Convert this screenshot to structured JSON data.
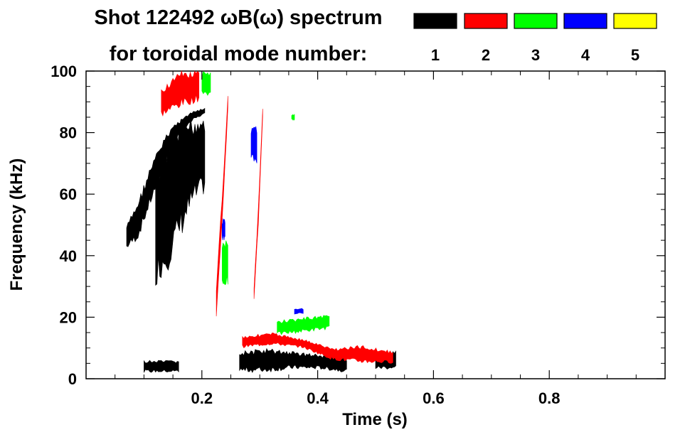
{
  "chart_data": {
    "type": "heatmap",
    "title_line1": "Shot 122492 ωB(ω) spectrum",
    "title_line2": "for toroidal mode number:",
    "xlabel": "Time (s)",
    "ylabel": "Frequency (kHz)",
    "xlim": [
      0.0,
      1.0
    ],
    "ylim": [
      0,
      100
    ],
    "x_ticks": [
      0.2,
      0.4,
      0.6,
      0.8
    ],
    "x_tick_labels": [
      "0.2",
      "0.4",
      "0.6",
      "0.8"
    ],
    "y_ticks": [
      0,
      20,
      40,
      60,
      80,
      100
    ],
    "y_tick_labels": [
      "0",
      "20",
      "40",
      "60",
      "80",
      "100"
    ],
    "legend": [
      {
        "label": "1",
        "color": "#000000"
      },
      {
        "label": "2",
        "color": "#ff0000"
      },
      {
        "label": "3",
        "color": "#00ff00"
      },
      {
        "label": "4",
        "color": "#0000ff"
      },
      {
        "label": "5",
        "color": "#ffff00"
      }
    ],
    "series": [
      {
        "name": "n=1",
        "color": "#000000",
        "regions": [
          {
            "t": [
              0.07,
              0.205
            ],
            "f_low": [
              42,
              45,
              55,
              65,
              75,
              80,
              84,
              86
            ],
            "f_high": [
              50,
              58,
              68,
              76,
              82,
              85,
              87,
              88
            ]
          },
          {
            "t": [
              0.12,
              0.205
            ],
            "f_low": [
              30,
              35,
              45,
              55,
              60
            ],
            "f_high": [
              70,
              80,
              85,
              86,
              87
            ]
          },
          {
            "t": [
              0.265,
              0.45
            ],
            "f_low": [
              2,
              2,
              3,
              3,
              2
            ],
            "f_high": [
              9,
              10,
              9,
              8,
              7
            ]
          },
          {
            "t": [
              0.1,
              0.16
            ],
            "f_low": [
              2,
              2
            ],
            "f_high": [
              6,
              6
            ]
          },
          {
            "t": [
              0.5,
              0.535
            ],
            "f_low": [
              3,
              3
            ],
            "f_high": [
              8,
              9
            ]
          }
        ]
      },
      {
        "name": "n=2",
        "color": "#ff0000",
        "regions": [
          {
            "t": [
              0.13,
              0.195
            ],
            "f_low": [
              85,
              88,
              90
            ],
            "f_high": [
              95,
              100,
              100
            ]
          },
          {
            "t": [
              0.225,
              0.245
            ],
            "f_low": [
              20,
              50,
              88
            ],
            "f_high": [
              30,
              60,
              92
            ]
          },
          {
            "t": [
              0.29,
              0.305
            ],
            "f_low": [
              25,
              50,
              85
            ],
            "f_high": [
              30,
              56,
              88
            ]
          },
          {
            "t": [
              0.27,
              0.53
            ],
            "f_low": [
              10,
              11,
              10,
              6,
              5,
              5
            ],
            "f_high": [
              14,
              15,
              13,
              10,
              11,
              9
            ]
          }
        ]
      },
      {
        "name": "n=3",
        "color": "#00ff00",
        "regions": [
          {
            "t": [
              0.2,
              0.215
            ],
            "f_low": [
              92
            ],
            "f_high": [
              100
            ]
          },
          {
            "t": [
              0.235,
              0.245
            ],
            "f_low": [
              30
            ],
            "f_high": [
              45
            ]
          },
          {
            "t": [
              0.33,
              0.42
            ],
            "f_low": [
              14,
              16
            ],
            "f_high": [
              19,
              21
            ]
          },
          {
            "t": [
              0.355,
              0.36
            ],
            "f_low": [
              84
            ],
            "f_high": [
              86
            ]
          }
        ]
      },
      {
        "name": "n=4",
        "color": "#0000ff",
        "regions": [
          {
            "t": [
              0.285,
              0.295
            ],
            "f_low": [
              70
            ],
            "f_high": [
              82
            ]
          },
          {
            "t": [
              0.36,
              0.375
            ],
            "f_low": [
              21
            ],
            "f_high": [
              23
            ]
          },
          {
            "t": [
              0.235,
              0.24
            ],
            "f_low": [
              45
            ],
            "f_high": [
              52
            ]
          }
        ]
      },
      {
        "name": "n=5",
        "color": "#ffff00",
        "regions": []
      }
    ]
  }
}
